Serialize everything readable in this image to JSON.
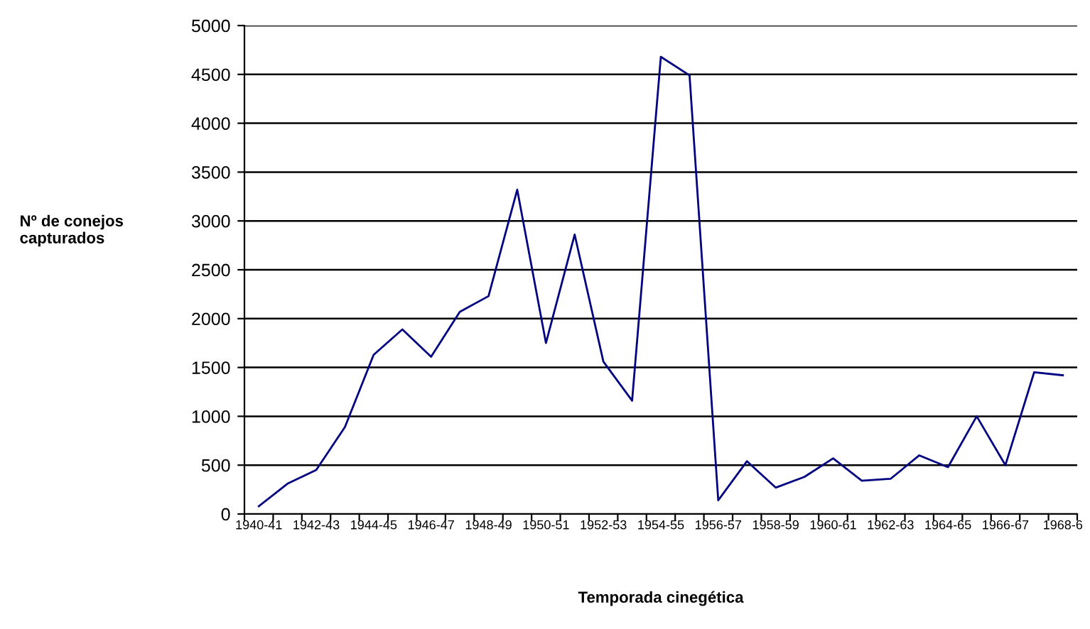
{
  "chart_data": {
    "type": "line",
    "xlabel": "Temporada cinegética",
    "ylabel": "Nº de conejos\ncapturados",
    "categories": [
      "1940-41",
      null,
      "1942-43",
      null,
      "1944-45",
      null,
      "1946-47",
      null,
      "1948-49",
      null,
      "1950-51",
      null,
      "1952-53",
      null,
      "1954-55",
      null,
      "1956-57",
      null,
      "1958-59",
      null,
      "1960-61",
      null,
      "1962-63",
      null,
      "1964-65",
      null,
      "1966-67",
      null,
      "1968-6"
    ],
    "series": [
      {
        "color": "#000080",
        "values": [
          80,
          310,
          450,
          890,
          1630,
          1890,
          1610,
          2070,
          2230,
          3320,
          1750,
          2860,
          1560,
          1160,
          4680,
          4490,
          140,
          540,
          270,
          380,
          570,
          340,
          360,
          600,
          480,
          1000,
          500,
          1450,
          1420
        ]
      }
    ],
    "ylim": [
      0,
      5000
    ],
    "yticks": [
      0,
      500,
      1000,
      1500,
      2000,
      2500,
      3000,
      3500,
      4000,
      4500,
      5000
    ],
    "grid": "y",
    "marker": "none",
    "line_style": "solid"
  }
}
